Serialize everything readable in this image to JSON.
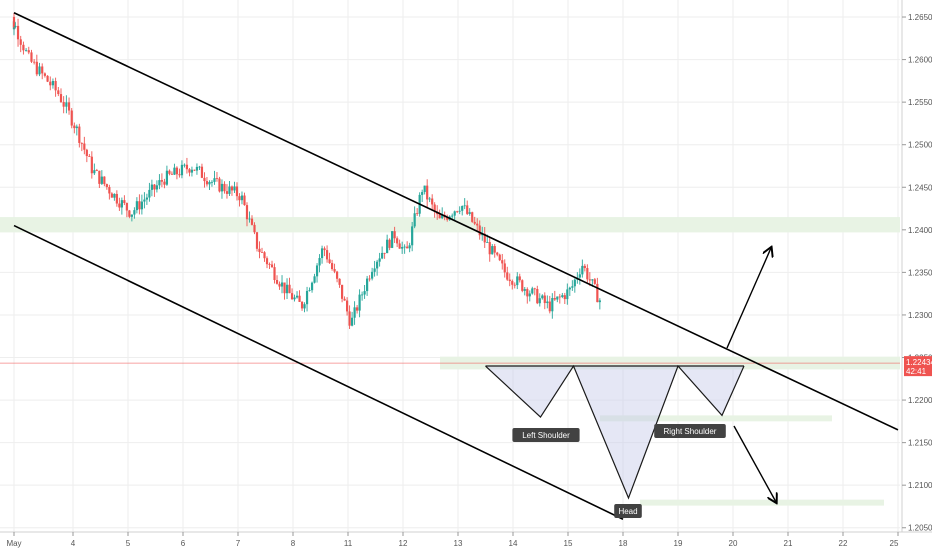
{
  "chart_data": {
    "type": "candlestick",
    "x_ticks": [
      "May",
      "4",
      "5",
      "6",
      "7",
      "8",
      "11",
      "12",
      "13",
      "14",
      "15",
      "18",
      "19",
      "20",
      "21",
      "22",
      "25"
    ],
    "y_ticks": [
      "1.26500",
      "1.26000",
      "1.25500",
      "1.25000",
      "1.24500",
      "1.24000",
      "1.23500",
      "1.23000",
      "1.22500",
      "1.22000",
      "1.21500",
      "1.21000",
      "1.20500"
    ],
    "y_range": [
      1.2045,
      1.267
    ],
    "current_price": {
      "value": 1.22434,
      "label": "1.22434",
      "countdown": "42:41",
      "color": "#ef5350"
    },
    "bull_color": "#26a69a",
    "bear_color": "#ef5350",
    "pattern": "Inverse Head and Shoulders",
    "annotations": {
      "left_shoulder": "Left Shoulder",
      "head": "Head",
      "right_shoulder": "Right Shoulder"
    },
    "key_points": [
      {
        "x": "13.5",
        "y": 1.224
      },
      {
        "x": "14.5",
        "y": 1.218
      },
      {
        "x": "15.1",
        "y": 1.224
      },
      {
        "x": "18.1",
        "y": 1.2085
      },
      {
        "x": "19.0",
        "y": 1.224
      },
      {
        "x": "19.8",
        "y": 1.2182
      },
      {
        "x": "20.2",
        "y": 1.224
      }
    ],
    "channel": {
      "upper": [
        {
          "x": "May",
          "y": 1.2655
        },
        {
          "x": "25",
          "y": 1.2165
        }
      ],
      "lower": [
        {
          "x": "May",
          "y": 1.2405
        },
        {
          "x": "18",
          "y": 1.206
        }
      ]
    },
    "zones": [
      {
        "low": 1.2397,
        "high": 1.2415,
        "color": "#e8f3e4"
      },
      {
        "low": 1.2236,
        "high": 1.2251,
        "color": "#e8f3e4"
      },
      {
        "low": 1.2175,
        "high": 1.2182,
        "color": "#e8f3e4"
      },
      {
        "low": 1.2076,
        "high": 1.2083,
        "color": "#e8f3e4"
      }
    ],
    "scenarios": [
      "up",
      "down"
    ]
  }
}
